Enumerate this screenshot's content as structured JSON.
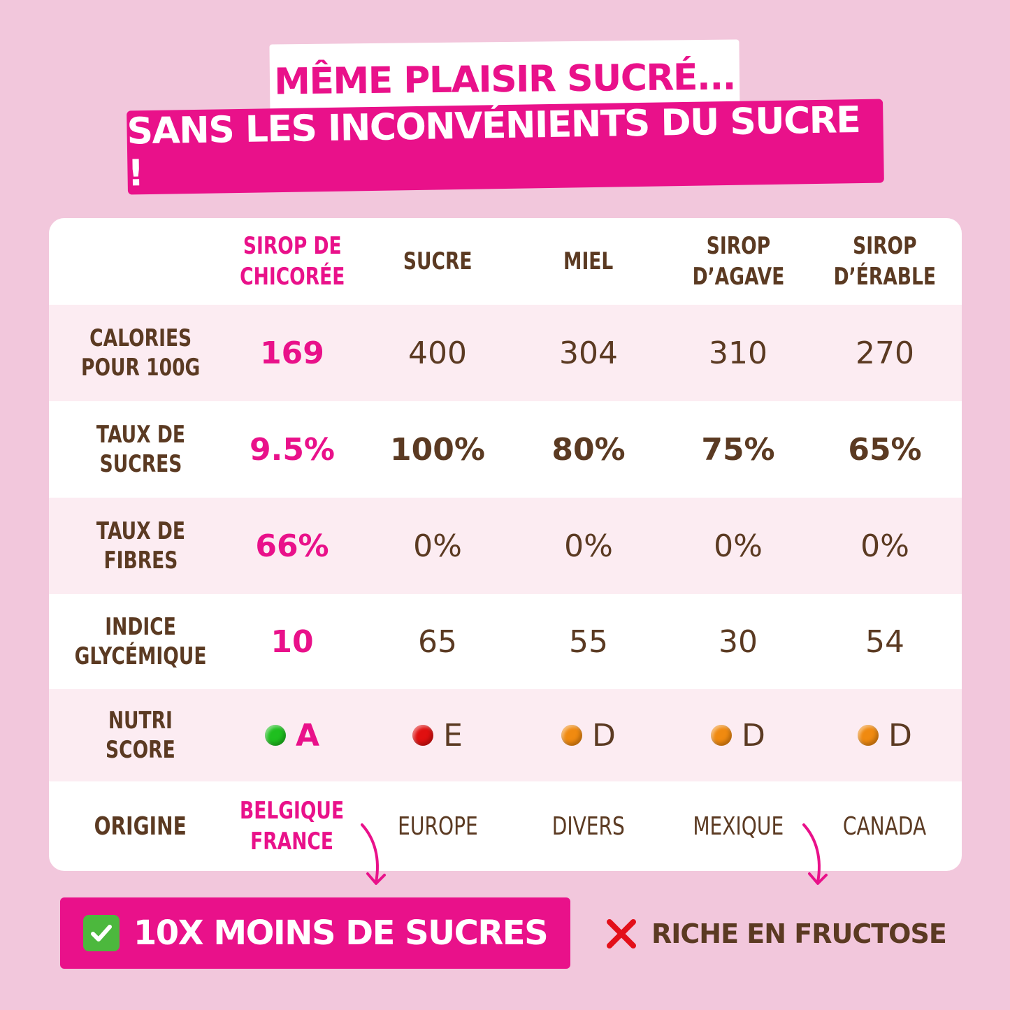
{
  "headline": {
    "line1": "MÊME PLAISIR SUCRÉ...",
    "line2": "SANS LES INCONVÉNIENTS DU SUCRE !"
  },
  "table": {
    "columns": [
      {
        "line1": "SIROP DE",
        "line2": "CHICORÉE",
        "highlight": true
      },
      {
        "line1": "SUCRE",
        "line2": ""
      },
      {
        "line1": "MIEL",
        "line2": ""
      },
      {
        "line1": "SIROP",
        "line2": "D’AGAVE"
      },
      {
        "line1": "SIROP",
        "line2": "D’ÉRABLE"
      }
    ],
    "rows": [
      {
        "label1": "CALORIES",
        "label2": "POUR 100G",
        "values": [
          "169",
          "400",
          "304",
          "310",
          "270"
        ]
      },
      {
        "label1": "TAUX DE",
        "label2": "SUCRES",
        "values": [
          "9.5%",
          "100%",
          "80%",
          "75%",
          "65%"
        ]
      },
      {
        "label1": "TAUX DE",
        "label2": "FIBRES",
        "values": [
          "66%",
          "0%",
          "0%",
          "0%",
          "0%"
        ]
      },
      {
        "label1": "INDICE",
        "label2": "GLYCÉMIQUE",
        "values": [
          "10",
          "65",
          "55",
          "30",
          "54"
        ]
      },
      {
        "label1": "NUTRI",
        "label2": "SCORE",
        "values": [
          "A",
          "E",
          "D",
          "D",
          "D"
        ]
      },
      {
        "label1": "ORIGINE",
        "label2": "",
        "values": [
          "BELGIQUE",
          "EUROPE",
          "DIVERS",
          "MEXIQUE",
          "CANADA"
        ],
        "first_value_line2": "FRANCE"
      }
    ],
    "nutri_colors": [
      "#1fbf1f",
      "#e01010",
      "#f08a10",
      "#f08a10",
      "#f08a10"
    ]
  },
  "footer": {
    "benefit": "10X MOINS DE SUCRES",
    "drawback": "RICHE EN FRUCTOSE"
  },
  "colors": {
    "background": "#f2c7dc",
    "brand_pink": "#e9118a",
    "text_brown": "#5b3a22",
    "row_shade": "#fcecf2",
    "check_green": "#4cb83d",
    "cross_red": "#e3101a"
  },
  "icons": {
    "benefit_icon": "check-mark-button-icon",
    "drawback_icon": "cross-mark-icon"
  }
}
